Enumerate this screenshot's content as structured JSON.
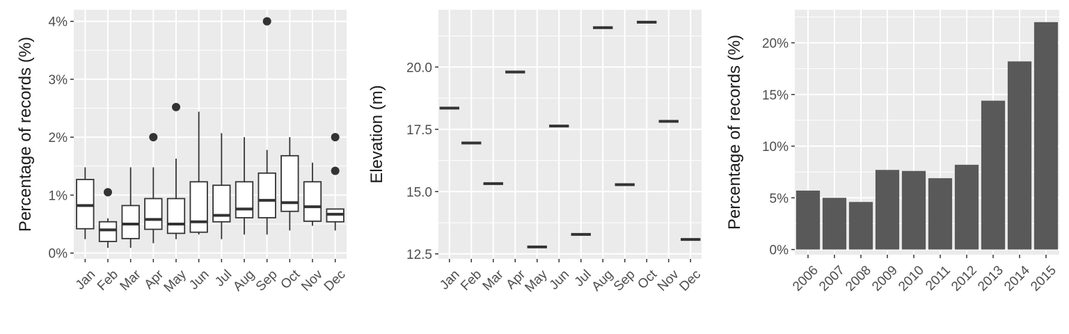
{
  "chart_data": [
    {
      "type": "box",
      "ylabel": "Percentage of records (%)",
      "xlabel": "",
      "categories": [
        "Jan",
        "Feb",
        "Mar",
        "Apr",
        "May",
        "Jun",
        "Jul",
        "Aug",
        "Sep",
        "Oct",
        "Nov",
        "Dec"
      ],
      "yticks": [
        0,
        1,
        2,
        3,
        4
      ],
      "ytick_labels": [
        "0%",
        "1%",
        "2%",
        "3%",
        "4%"
      ],
      "ylim": [
        -0.1,
        4.2
      ],
      "grid": true,
      "boxes": [
        {
          "cat": "Jan",
          "wlo": 0.24,
          "q1": 0.42,
          "med": 0.82,
          "q3": 1.27,
          "whi": 1.48,
          "out": []
        },
        {
          "cat": "Feb",
          "wlo": 0.09,
          "q1": 0.2,
          "med": 0.4,
          "q3": 0.54,
          "whi": 0.6,
          "out": [
            1.05
          ]
        },
        {
          "cat": "Mar",
          "wlo": 0.09,
          "q1": 0.25,
          "med": 0.5,
          "q3": 0.82,
          "whi": 1.48,
          "out": []
        },
        {
          "cat": "Apr",
          "wlo": 0.17,
          "q1": 0.41,
          "med": 0.58,
          "q3": 0.94,
          "whi": 1.48,
          "out": [
            2.0
          ]
        },
        {
          "cat": "May",
          "wlo": 0.24,
          "q1": 0.34,
          "med": 0.5,
          "q3": 0.94,
          "whi": 1.63,
          "out": [
            2.52
          ]
        },
        {
          "cat": "Jun",
          "wlo": 0.32,
          "q1": 0.36,
          "med": 0.54,
          "q3": 1.23,
          "whi": 2.44,
          "out": []
        },
        {
          "cat": "Jul",
          "wlo": 0.24,
          "q1": 0.54,
          "med": 0.65,
          "q3": 1.17,
          "whi": 2.07,
          "out": []
        },
        {
          "cat": "Aug",
          "wlo": 0.32,
          "q1": 0.61,
          "med": 0.76,
          "q3": 1.23,
          "whi": 2.0,
          "out": []
        },
        {
          "cat": "Sep",
          "wlo": 0.32,
          "q1": 0.61,
          "med": 0.91,
          "q3": 1.38,
          "whi": 1.78,
          "out": [
            4.0
          ]
        },
        {
          "cat": "Oct",
          "wlo": 0.39,
          "q1": 0.72,
          "med": 0.87,
          "q3": 1.68,
          "whi": 2.0,
          "out": []
        },
        {
          "cat": "Nov",
          "wlo": 0.47,
          "q1": 0.55,
          "med": 0.8,
          "q3": 1.23,
          "whi": 1.56,
          "out": []
        },
        {
          "cat": "Dec",
          "wlo": 0.39,
          "q1": 0.54,
          "med": 0.67,
          "q3": 0.76,
          "whi": 0.76,
          "out": [
            1.42,
            2.0
          ]
        }
      ]
    },
    {
      "type": "scatter",
      "ylabel": "Elevation (m)",
      "xlabel": "",
      "categories": [
        "Jan",
        "Feb",
        "Mar",
        "Apr",
        "May",
        "Jun",
        "Jul",
        "Aug",
        "Sep",
        "Oct",
        "Nov",
        "Dec"
      ],
      "values": [
        18.35,
        16.95,
        15.32,
        19.8,
        12.78,
        17.63,
        13.28,
        21.58,
        15.28,
        21.8,
        17.82,
        13.08
      ],
      "yticks": [
        12.5,
        15.0,
        17.5,
        20.0
      ],
      "ytick_labels": [
        "12.5",
        "15.0",
        "17.5",
        "20.0"
      ],
      "ylim": [
        12.3,
        22.3
      ],
      "grid": true
    },
    {
      "type": "bar",
      "ylabel": "Percentage of records (%)",
      "xlabel": "",
      "categories": [
        "2006",
        "2007",
        "2008",
        "2009",
        "2010",
        "2011",
        "2012",
        "2013",
        "2014",
        "2015"
      ],
      "values": [
        5.7,
        5.0,
        4.6,
        7.7,
        7.6,
        6.9,
        8.2,
        14.4,
        18.2,
        22.0
      ],
      "yticks": [
        0,
        5,
        10,
        15,
        20
      ],
      "ytick_labels": [
        "0%",
        "5%",
        "10%",
        "15%",
        "20%"
      ],
      "ylim": [
        -0.5,
        23.2
      ],
      "grid": true,
      "bar_color": "#595959"
    }
  ],
  "colors": {
    "panel_bg": "#ebebeb",
    "grid": "#ffffff",
    "mark": "#333333",
    "bar": "#595959",
    "tick_text": "#4d4d4d"
  }
}
